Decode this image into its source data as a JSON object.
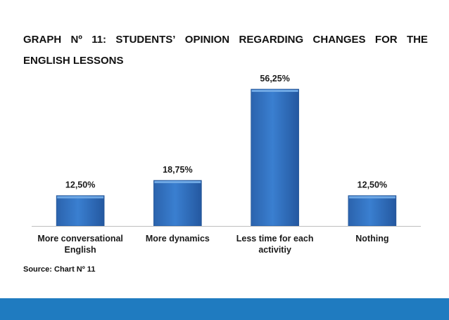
{
  "title": {
    "line1_words": [
      "GRAPH",
      "Nº",
      "11:",
      "STUDENTS’",
      "OPINION",
      "REGARDING",
      "CHANGES",
      "FOR",
      "THE"
    ],
    "line2": "ENGLISH LESSONS"
  },
  "source": "Source: Chart Nº 11",
  "colors": {
    "bar_top": "#5b9bd5",
    "bar_mid": "#2e6fc0",
    "bar_edge": "#1f4f8f",
    "band": "#1f7bc0"
  },
  "chart_data": {
    "type": "bar",
    "categories": [
      [
        "More conversational",
        "English"
      ],
      [
        "More dynamics"
      ],
      [
        "Less time for each",
        "activitiy"
      ],
      [
        "Nothing"
      ]
    ],
    "values": [
      12.5,
      18.75,
      56.25,
      12.5
    ],
    "data_labels": [
      "12,50%",
      "18,75%",
      "56,25%",
      "12,50%"
    ],
    "ylim": [
      0,
      56.25
    ],
    "grid": false,
    "legend": "none"
  }
}
